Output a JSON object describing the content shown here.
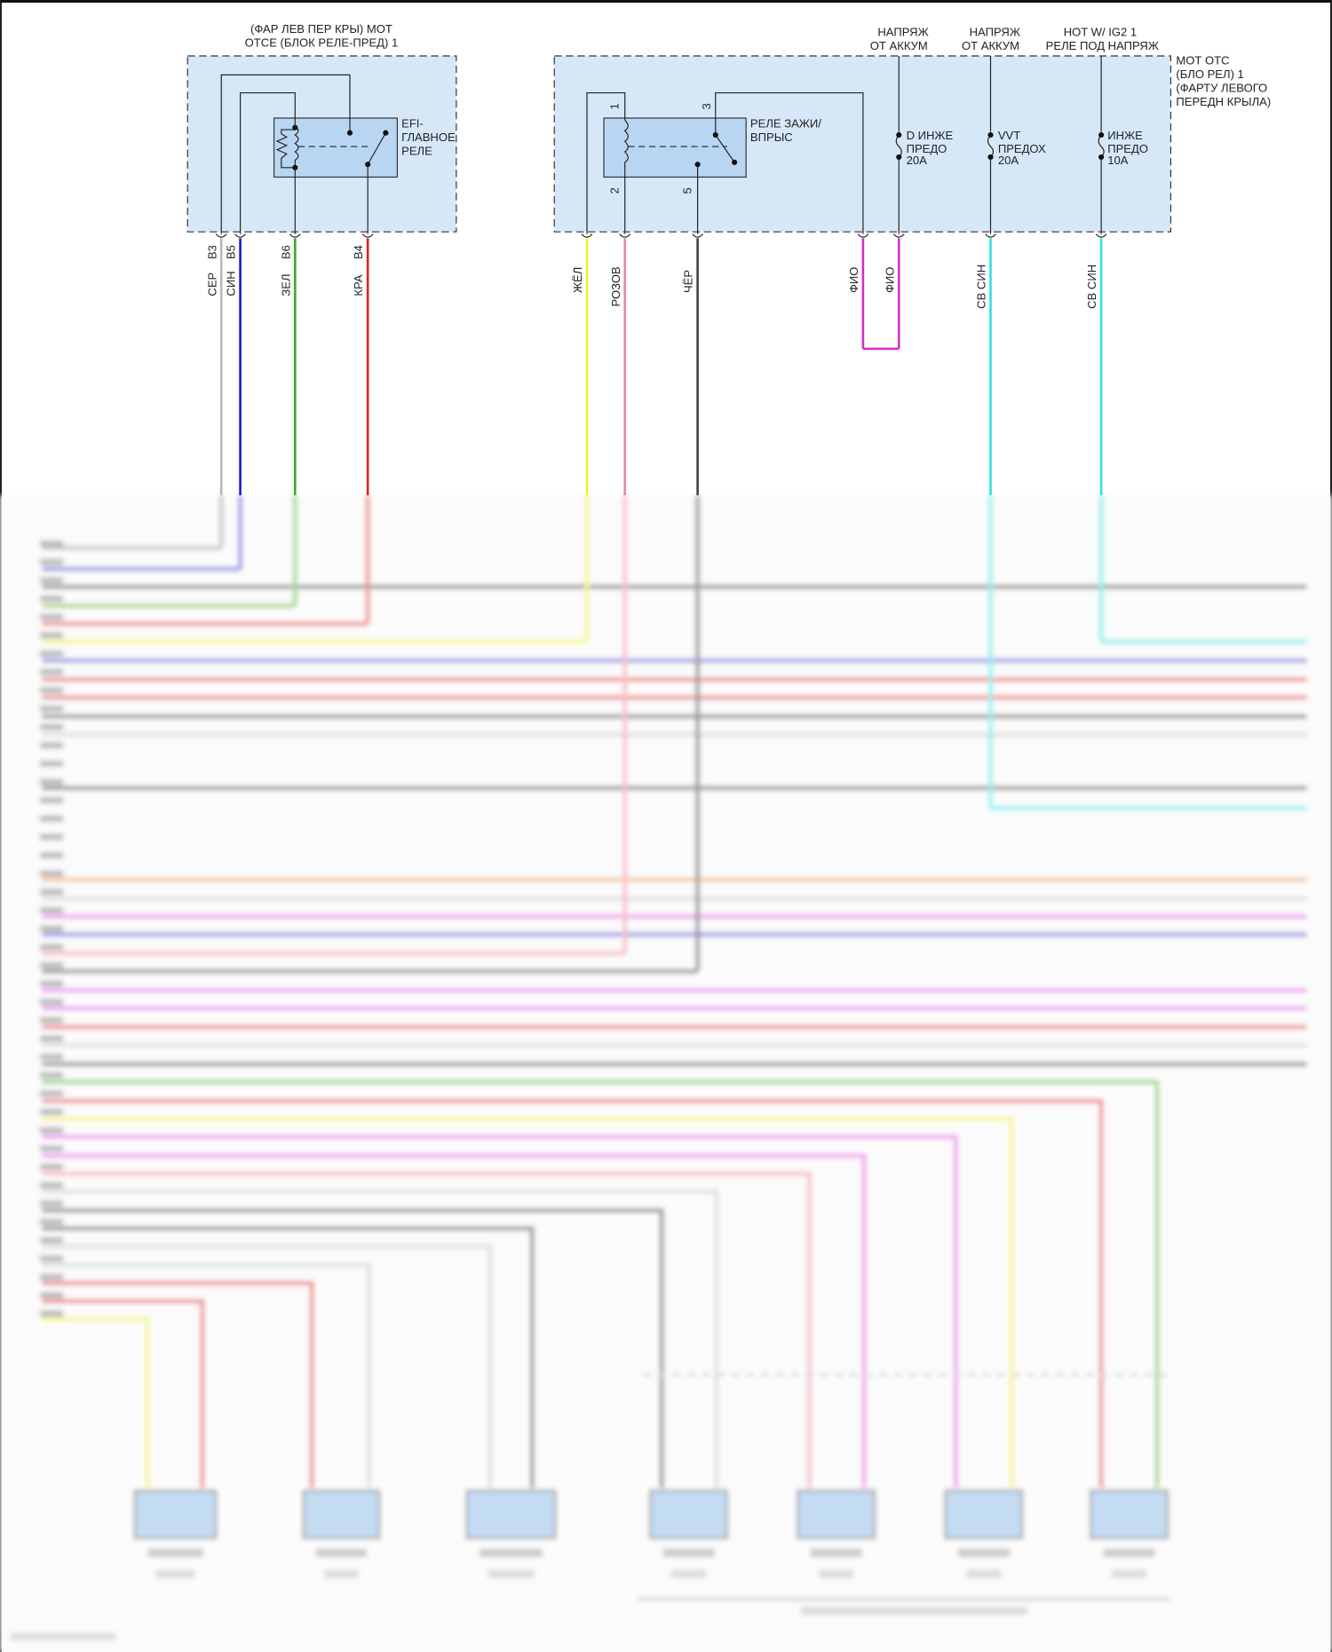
{
  "left_block": {
    "title_line1": "(ФАР ЛЕВ ПЕР КРЫ) МОТ",
    "title_line2": "ОТСЕ (БЛОК РЕЛЕ-ПРЕД) 1",
    "relay_line1": "EFI-",
    "relay_line2": "ГЛАВНОЕ",
    "relay_line3": "РЕЛЕ",
    "wires": [
      {
        "pin": "B3",
        "color_name": "СЕР",
        "color": "#b8b8b8"
      },
      {
        "pin": "B5",
        "color_name": "СИН",
        "color": "#1a1ad0"
      },
      {
        "pin": "B6",
        "color_name": "ЗЕЛ",
        "color": "#3aaa2a"
      },
      {
        "pin": "B4",
        "color_name": "КРА",
        "color": "#e02020"
      }
    ]
  },
  "right_block": {
    "title_line1": "МОТ ОТС",
    "title_line2": "(БЛО РЕЛ) 1",
    "title_line3": "(ФАРТУ ЛЕВОГО",
    "title_line4": "ПЕРЕДН КРЫЛА)",
    "relay_line1": "РЕЛЕ ЗАЖИ/",
    "relay_line2": "ВПРЫС",
    "relay_pins": [
      "1",
      "2",
      "3",
      "5"
    ],
    "supplies": [
      {
        "line1": "НАПРЯЖ",
        "line2": "ОТ АККУМ"
      },
      {
        "line1": "НАПРЯЖ",
        "line2": "ОТ АККУМ"
      },
      {
        "line1": "HOT W/ IG2 1",
        "line2": "РЕЛЕ ПОД НАПРЯЖ"
      }
    ],
    "fuses": [
      {
        "line1": "D ИНЖЕ",
        "line2": "ПРЕДО",
        "rating": "20A"
      },
      {
        "line1": "VVT",
        "line2": "ПРЕДОХ",
        "rating": "20A"
      },
      {
        "line1": "ИНЖЕ",
        "line2": "ПРЕДО",
        "rating": "10A"
      }
    ],
    "wires": [
      {
        "color_name": "ЖЁЛ",
        "color": "#f0f020"
      },
      {
        "color_name": "РОЗОВ",
        "color": "#e88aa0"
      },
      {
        "color_name": "ЧЁР",
        "color": "#444444"
      },
      {
        "color_name": "ФИО",
        "color": "#d030d0"
      },
      {
        "color_name": "ФИО",
        "color": "#d030d0"
      },
      {
        "color_name": "СВ СИН",
        "color": "#30e0e0"
      },
      {
        "color_name": "СВ СИН",
        "color": "#30e0e0"
      }
    ]
  },
  "colors": {
    "block_fill": "#d6e8f8",
    "relay_fill": "#b8d6f2"
  }
}
